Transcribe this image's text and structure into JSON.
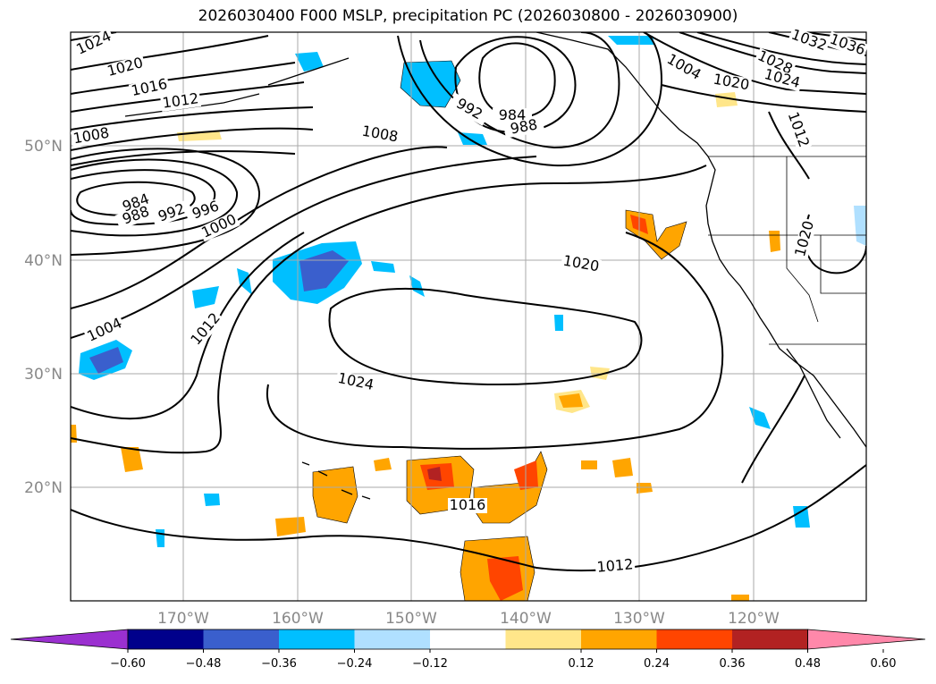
{
  "title": "2026030400 F000 MSLP, precipitation PC (2026030800 - 2026030900)",
  "latitude_labels": [
    "50°N",
    "40°N",
    "30°N",
    "20°N"
  ],
  "longitude_labels": [
    "170°W",
    "160°W",
    "150°W",
    "140°W",
    "130°W",
    "120°W"
  ],
  "isobar_labels": [
    "1024",
    "1020",
    "1016",
    "1012",
    "1008",
    "984",
    "988",
    "992",
    "996",
    "1000",
    "1004",
    "1012",
    "1020",
    "1024",
    "1008",
    "992",
    "984",
    "988",
    "1004",
    "1020",
    "1028",
    "1024",
    "1032",
    "1036",
    "1012",
    "1020",
    "1016",
    "1012"
  ],
  "colorbar": {
    "ticks": [
      "−0.60",
      "−0.48",
      "−0.36",
      "−0.24",
      "−0.12",
      "0.12",
      "0.24",
      "0.36",
      "0.48",
      "0.60"
    ],
    "colors": [
      "#9b30d0",
      "#00008b",
      "#3a5fcd",
      "#00bfff",
      "#b0e0ff",
      "#ffffff",
      "#ffe68a",
      "#ffa500",
      "#ff4500",
      "#b22222",
      "#ff88aa"
    ]
  }
}
